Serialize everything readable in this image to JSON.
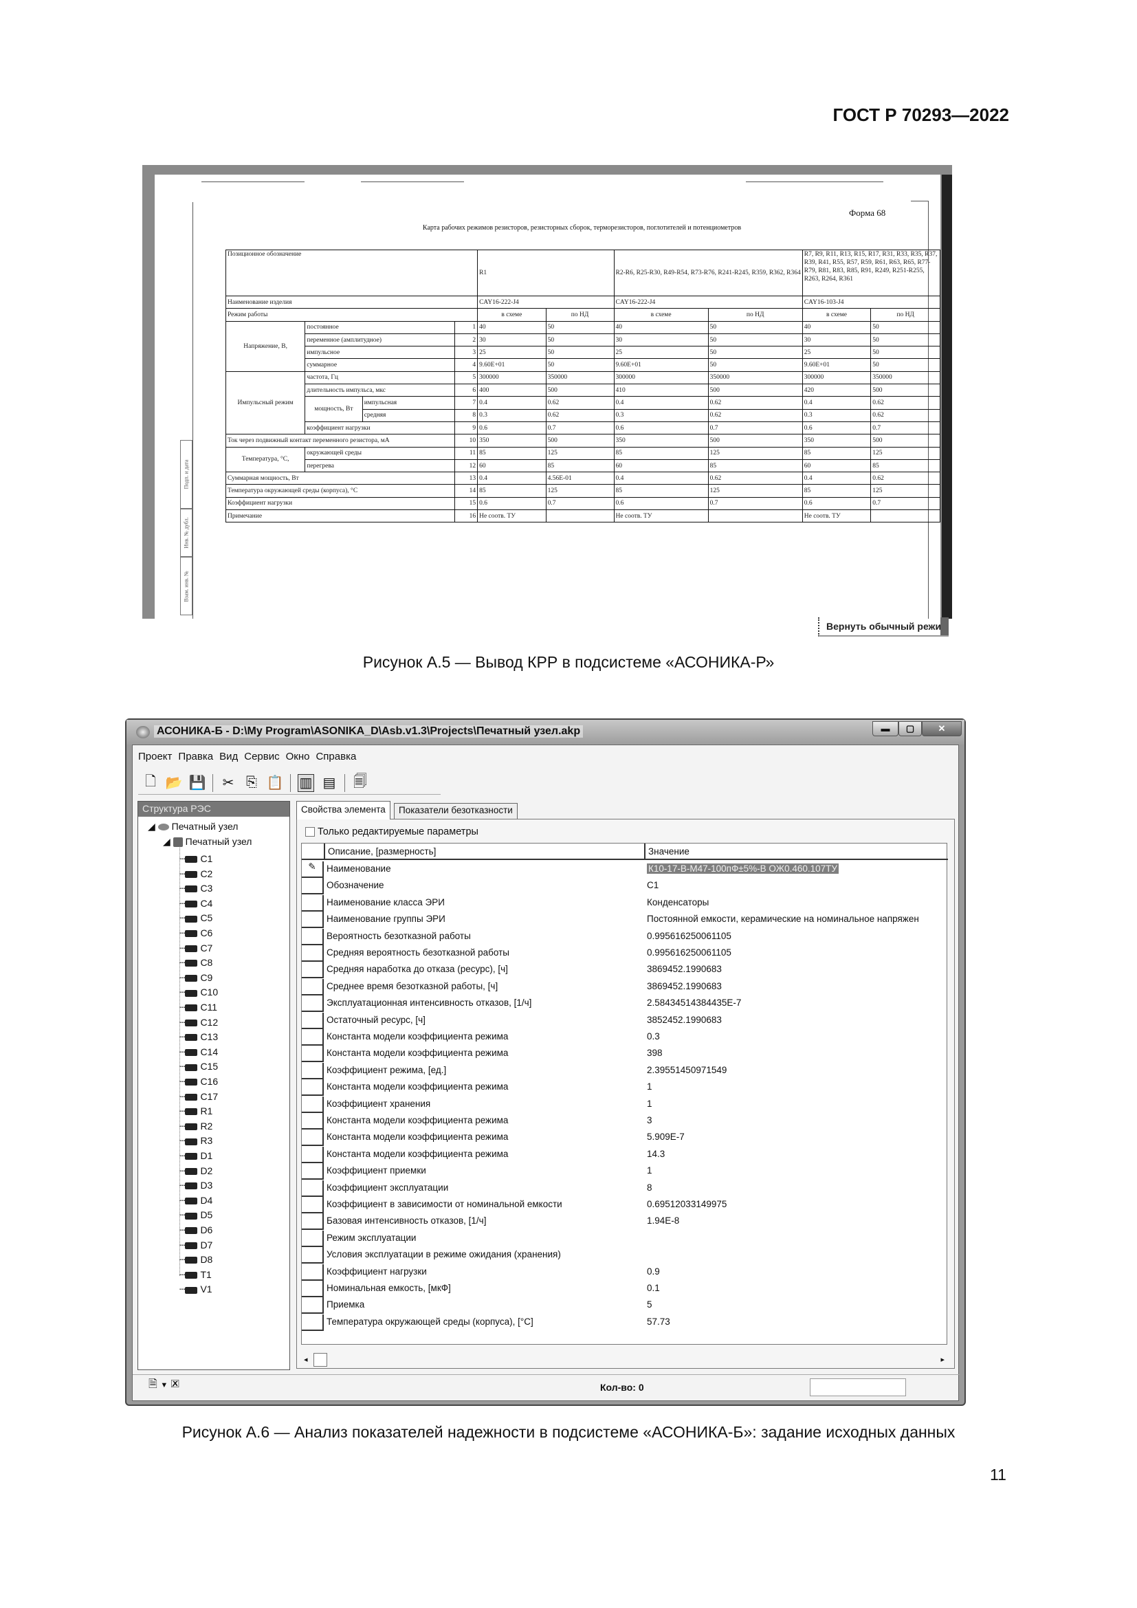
{
  "header": {
    "standard": "ГОСТ Р 70293—2022"
  },
  "figure1": {
    "form_number": "Форма 68",
    "form_title": "Карта рабочих режимов резисторов, резисторных сборок, терморезисторов, поглотителей и потенциометров",
    "stamp": [
      "Подп. и дата",
      "Инв. № дубл.",
      "Взам. инв. №"
    ],
    "restore_button": "Вернуть обычный режим",
    "caption": "Рисунок А.5 — Вывод КРР в подсистеме «АСОНИКА-Р»",
    "table": {
      "position_label": "Позиционное обозначение",
      "product_label": "Наименование изделия",
      "mode_label": "Режим работы",
      "sub_labels": [
        "в схеме",
        "по НД"
      ],
      "groups": [
        {
          "positions": "R1",
          "product": "CAY16-222-J4"
        },
        {
          "positions": "R2-R6, R25-R30, R49-R54, R73-R76, R241-R245, R359, R362, R364",
          "product": "CAY16-222-J4"
        },
        {
          "positions": "R7, R9, R11, R13, R15, R17, R31, R33, R35, R37, R39, R41, R55, R57, R59, R61, R63, R65, R77-R79, R81, R83, R85, R91, R249, R251-R255, R263, R264, R361",
          "product": "CAY16-103-J4"
        }
      ],
      "row_groups": {
        "voltage": "Напряжение, В,",
        "pulse": "Импульсный режим",
        "power": "мощность, Вт",
        "temperature": "Температура, °С,"
      },
      "rows": [
        {
          "n": "1",
          "label": "постоянное",
          "values": [
            "40",
            "50",
            "40",
            "50",
            "40",
            "50"
          ]
        },
        {
          "n": "2",
          "label": "переменное (амплитудное)",
          "values": [
            "30",
            "50",
            "30",
            "50",
            "30",
            "50"
          ]
        },
        {
          "n": "3",
          "label": "импульсное",
          "values": [
            "25",
            "50",
            "25",
            "50",
            "25",
            "50"
          ]
        },
        {
          "n": "4",
          "label": "суммарное",
          "values": [
            "9.60E+01",
            "50",
            "9.60E+01",
            "50",
            "9.60E+01",
            "50"
          ]
        },
        {
          "n": "5",
          "label": "частота, Гц",
          "values": [
            "300000",
            "350000",
            "300000",
            "350000",
            "300000",
            "350000"
          ]
        },
        {
          "n": "6",
          "label": "длительность импульса, мкс",
          "values": [
            "400",
            "500",
            "410",
            "500",
            "420",
            "500"
          ]
        },
        {
          "n": "7",
          "label": "импульсная",
          "values": [
            "0.4",
            "0.62",
            "0.4",
            "0.62",
            "0.4",
            "0.62"
          ]
        },
        {
          "n": "8",
          "label": "средняя",
          "values": [
            "0.3",
            "0.62",
            "0.3",
            "0.62",
            "0.3",
            "0.62"
          ]
        },
        {
          "n": "9",
          "label": "коэффициент нагрузки",
          "values": [
            "0.6",
            "0.7",
            "0.6",
            "0.7",
            "0.6",
            "0.7"
          ]
        },
        {
          "n": "10",
          "label": "Ток через подвижный контакт переменного резистора, мА",
          "values": [
            "350",
            "500",
            "350",
            "500",
            "350",
            "500"
          ]
        },
        {
          "n": "11",
          "label": "окружающей среды",
          "values": [
            "85",
            "125",
            "85",
            "125",
            "85",
            "125"
          ]
        },
        {
          "n": "12",
          "label": "перегрева",
          "values": [
            "60",
            "85",
            "60",
            "85",
            "60",
            "85"
          ]
        },
        {
          "n": "13",
          "label": "Суммарная мощность, Вт",
          "values": [
            "0.4",
            "4.56E-01",
            "0.4",
            "0.62",
            "0.4",
            "0.62"
          ]
        },
        {
          "n": "14",
          "label": "Температура окружающей среды (корпуса), °С",
          "values": [
            "85",
            "125",
            "85",
            "125",
            "85",
            "125"
          ]
        },
        {
          "n": "15",
          "label": "Коэффициент нагрузки",
          "values": [
            "0.6",
            "0.7",
            "0.6",
            "0.7",
            "0.6",
            "0.7"
          ]
        },
        {
          "n": "16",
          "label": "Примечание",
          "values": [
            "Не соотв. ТУ",
            "",
            "Не соотв. ТУ",
            "",
            "Не соотв. ТУ",
            ""
          ]
        }
      ]
    }
  },
  "figure2": {
    "caption": "Рисунок А.6 — Анализ показателей надежности в подсистеме «АСОНИКА-Б»: задание исходных данных",
    "window": {
      "title": "АСОНИКА-Б - D:\\My Program\\ASONIKA_D\\Asb.v1.3\\Projects\\Печатный узел.akp",
      "menu": [
        "Проект",
        "Правка",
        "Вид",
        "Сервис",
        "Окно",
        "Справка"
      ],
      "toolbar_icons": [
        "new-file-icon",
        "open-folder-icon",
        "save-icon",
        "cut-icon",
        "copy-icon",
        "paste-icon",
        "chart-icon",
        "table-icon",
        "report-icon"
      ],
      "left_panel": {
        "title": "Структура РЭС",
        "root": "Печатный узел",
        "child": "Печатный узел",
        "items": [
          "C1",
          "C2",
          "C3",
          "C4",
          "C5",
          "C6",
          "C7",
          "C8",
          "C9",
          "C10",
          "C11",
          "C12",
          "C13",
          "C14",
          "C15",
          "C16",
          "C17",
          "R1",
          "R2",
          "R3",
          "D1",
          "D2",
          "D3",
          "D4",
          "D5",
          "D6",
          "D7",
          "D8",
          "T1",
          "V1"
        ]
      },
      "tabs": [
        "Свойства элемента",
        "Показатели безотказности"
      ],
      "only_editable_label": "Только редактируемые параметры",
      "grid": {
        "columns": [
          "Описание, [размерность]",
          "Значение"
        ],
        "rows": [
          {
            "desc": "Наименование",
            "value": "К10-17-В-М47-100пФ±5%-В ОЖ0.460.107ТУ"
          },
          {
            "desc": "Обозначение",
            "value": "C1"
          },
          {
            "desc": "Наименование класса ЭРИ",
            "value": "Конденсаторы"
          },
          {
            "desc": "Наименование группы ЭРИ",
            "value": "Постоянной емкости, керамические на номинальное напряжен"
          },
          {
            "desc": "Вероятность безотказной работы",
            "value": "0.995616250061105"
          },
          {
            "desc": "Средняя вероятность безотказной работы",
            "value": "0.995616250061105"
          },
          {
            "desc": "Средняя наработка до отказа (ресурс), [ч]",
            "value": "3869452.1990683"
          },
          {
            "desc": "Среднее время безотказной работы, [ч]",
            "value": "3869452.1990683"
          },
          {
            "desc": "Эксплуатационная интенсивность отказов, [1/ч]",
            "value": "2.58434514384435E-7"
          },
          {
            "desc": "Остаточный ресурс, [ч]",
            "value": "3852452.1990683"
          },
          {
            "desc": "Константа модели коэффициента режима",
            "value": "0.3"
          },
          {
            "desc": "Константа модели коэффициента режима",
            "value": "398"
          },
          {
            "desc": "Коэффициент режима, [ед.]",
            "value": "2.39551450971549"
          },
          {
            "desc": "Константа модели коэффициента режима",
            "value": "1"
          },
          {
            "desc": "Коэффициент хранения",
            "value": "1"
          },
          {
            "desc": "Константа модели коэффициента режима",
            "value": "3"
          },
          {
            "desc": "Константа модели коэффициента режима",
            "value": "5.909E-7"
          },
          {
            "desc": "Константа модели коэффициента режима",
            "value": "14.3"
          },
          {
            "desc": "Коэффициент приемки",
            "value": "1"
          },
          {
            "desc": "Коэффициент эксплуатации",
            "value": "8"
          },
          {
            "desc": "Коэффициент в зависимости от номинальной емкости",
            "value": "0.69512033149975"
          },
          {
            "desc": "Базовая интенсивность отказов, [1/ч]",
            "value": "1.94E-8"
          },
          {
            "desc": "Режим эксплуатации",
            "value": ""
          },
          {
            "desc": "Условия эксплуатации в режиме ожидания (хранения)",
            "value": ""
          },
          {
            "desc": "Коэффициент нагрузки",
            "value": "0.9"
          },
          {
            "desc": "Номинальная емкость, [мкФ]",
            "value": "0.1"
          },
          {
            "desc": "Приемка",
            "value": "5"
          },
          {
            "desc": "Температура окружающей среды (корпуса), [°C]",
            "value": "57.73"
          }
        ]
      },
      "status": "Кол-во: 0"
    }
  },
  "page_number": "11"
}
